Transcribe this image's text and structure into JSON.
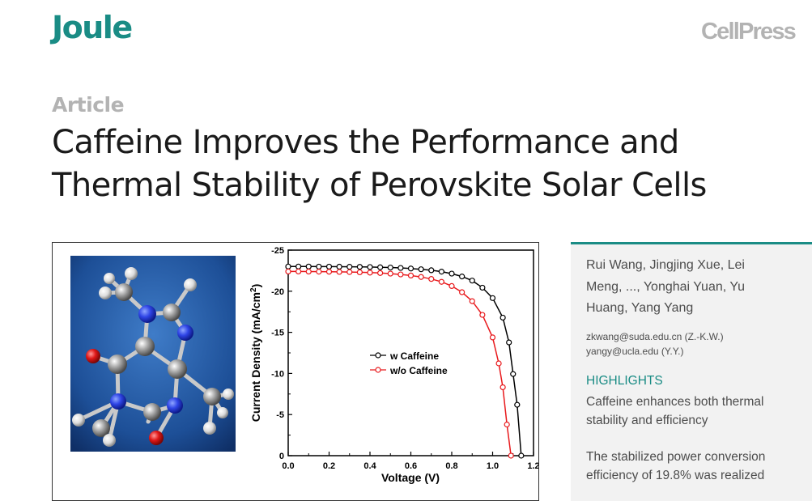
{
  "header": {
    "journal": "Joule",
    "publisher": "CellPress"
  },
  "article": {
    "type": "Article",
    "title_line1": "Caffeine Improves the Performance and",
    "title_line2": "Thermal Stability of Perovskite Solar Cells"
  },
  "sidebar": {
    "authors_line1": "Rui Wang, Jingjing Xue, Lei",
    "authors_line2": "Meng, ..., Yonghai Yuan, Yu",
    "authors_line3": "Huang, Yang Yang",
    "email1": "zkwang@suda.edu.cn (Z.-K.W.)",
    "email2": "yangy@ucla.edu (Y.Y.)",
    "highlights_heading": "HIGHLIGHTS",
    "highlight1_line1": "Caffeine enhances both thermal",
    "highlight1_line2": "stability and efficiency",
    "highlight2_line1": "The stabilized power conversion",
    "highlight2_line2": "efficiency of 19.8% was realized"
  },
  "colors": {
    "brand_teal": "#1a8c85",
    "series_w": "#000000",
    "series_wo": "#e8191c"
  },
  "icons": {
    "molecule": "caffeine-molecule-ball-and-stick"
  },
  "chart_data": {
    "type": "line",
    "xlabel": "Voltage (V)",
    "ylabel": "Current Density (mA/cm",
    "ylabel_sup": "2",
    "ylabel_end": ")",
    "xlim": [
      0,
      1.2
    ],
    "ylim": [
      0,
      -25
    ],
    "x_ticks": [
      0.0,
      0.2,
      0.4,
      0.6,
      0.8,
      1.0,
      1.2
    ],
    "x_tick_labels": [
      "0.0",
      "0.2",
      "0.4",
      "0.6",
      "0.8",
      "1.0",
      "1.2"
    ],
    "y_ticks": [
      -25,
      -20,
      -15,
      -10,
      -5,
      0
    ],
    "y_tick_labels": [
      "-25",
      "-20",
      "-15",
      "-10",
      "-5",
      "0"
    ],
    "legend_position": "center",
    "series": [
      {
        "name": "w Caffeine",
        "color": "#000000",
        "x": [
          0.0,
          0.05,
          0.1,
          0.15,
          0.2,
          0.25,
          0.3,
          0.35,
          0.4,
          0.45,
          0.5,
          0.55,
          0.6,
          0.65,
          0.7,
          0.75,
          0.8,
          0.85,
          0.9,
          0.95,
          1.0,
          1.05,
          1.08,
          1.1,
          1.12,
          1.14
        ],
        "y": [
          -23.0,
          -23.0,
          -23.0,
          -22.99,
          -22.99,
          -22.98,
          -22.97,
          -22.96,
          -22.94,
          -22.91,
          -22.88,
          -22.83,
          -22.76,
          -22.67,
          -22.55,
          -22.38,
          -22.14,
          -21.79,
          -21.29,
          -20.43,
          -19.16,
          -16.79,
          -13.77,
          -9.93,
          -6.19,
          0
        ]
      },
      {
        "name": "w/o Caffeine",
        "color": "#e8191c",
        "x": [
          0.0,
          0.05,
          0.1,
          0.15,
          0.2,
          0.25,
          0.3,
          0.35,
          0.4,
          0.45,
          0.5,
          0.55,
          0.6,
          0.65,
          0.7,
          0.75,
          0.8,
          0.85,
          0.9,
          0.95,
          1.0,
          1.03,
          1.05,
          1.07,
          1.09
        ],
        "y": [
          -22.4,
          -22.4,
          -22.39,
          -22.38,
          -22.37,
          -22.35,
          -22.33,
          -22.3,
          -22.26,
          -22.21,
          -22.14,
          -22.04,
          -21.91,
          -21.73,
          -21.49,
          -21.14,
          -20.63,
          -19.88,
          -18.79,
          -17.12,
          -14.38,
          -11.22,
          -8.32,
          -3.79,
          0
        ]
      }
    ]
  }
}
